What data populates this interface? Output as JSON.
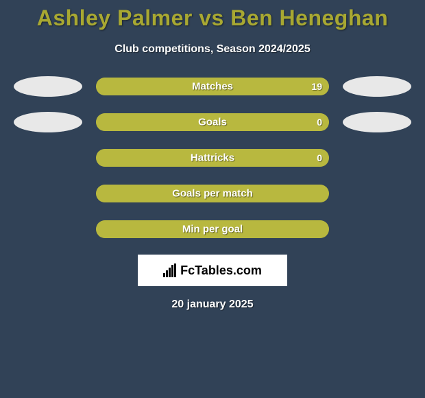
{
  "background_color": "#314257",
  "title": {
    "text": "Ashley Palmer vs Ben Heneghan",
    "color": "#a8a832",
    "fontsize": 32
  },
  "subtitle": {
    "text": "Club competitions, Season 2024/2025",
    "color": "#ffffff",
    "fontsize": 16
  },
  "blob_color": "#e8e8e8",
  "bar_track_color": "#9aa035",
  "bar_fill_color": "#b8b83f",
  "bar_text_color": "#ffffff",
  "rows": [
    {
      "label": "Matches",
      "value": "19",
      "fill_pct": 100,
      "left_blob": true,
      "right_blob": true
    },
    {
      "label": "Goals",
      "value": "0",
      "fill_pct": 100,
      "left_blob": true,
      "right_blob": true
    },
    {
      "label": "Hattricks",
      "value": "0",
      "fill_pct": 100,
      "left_blob": false,
      "right_blob": false
    },
    {
      "label": "Goals per match",
      "value": "",
      "fill_pct": 100,
      "left_blob": false,
      "right_blob": false
    },
    {
      "label": "Min per goal",
      "value": "",
      "fill_pct": 100,
      "left_blob": false,
      "right_blob": false
    }
  ],
  "logo": {
    "background": "#ffffff",
    "text": "FcTables.com"
  },
  "date": {
    "text": "20 january 2025",
    "color": "#ffffff",
    "fontsize": 16
  }
}
